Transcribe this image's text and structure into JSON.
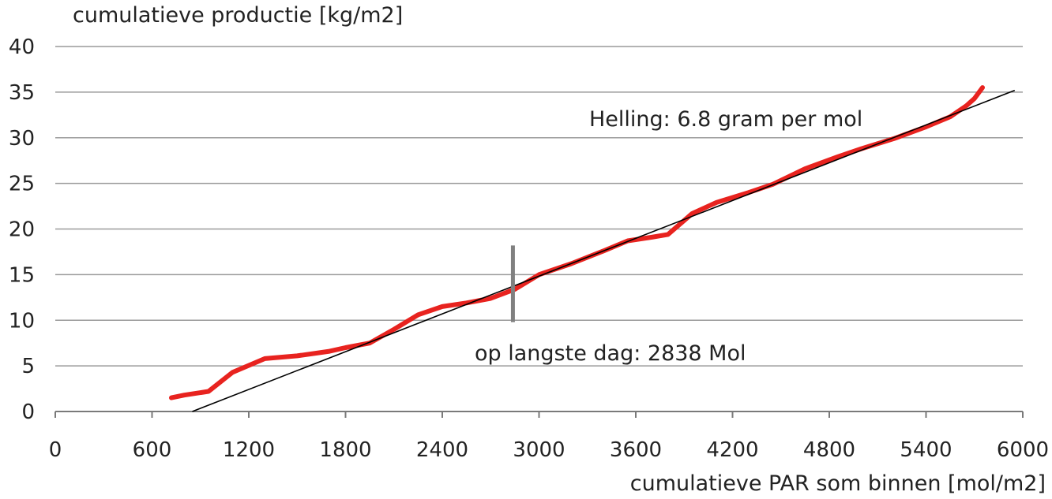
{
  "chart_data": {
    "type": "line",
    "ylabel": "cumulatieve productie [kg/m2]",
    "xlabel": "cumulatieve PAR som binnen [mol/m2]",
    "xlim": [
      0,
      6000
    ],
    "ylim": [
      0,
      40
    ],
    "xticks": [
      0,
      600,
      1200,
      1800,
      2400,
      3000,
      3600,
      4200,
      4800,
      5400,
      6000
    ],
    "yticks": [
      0,
      5,
      10,
      15,
      20,
      25,
      30,
      35,
      40
    ],
    "grid": "horizontal",
    "colors": {
      "measured": "#e8231f",
      "trend": "#000000",
      "marker": "#808080",
      "grid": "#9a9a9a"
    },
    "series": [
      {
        "x": [
          720,
          800,
          950,
          1100,
          1300,
          1500,
          1700,
          1800,
          1950,
          2100,
          2250,
          2400,
          2550,
          2700,
          2850,
          3000,
          3200,
          3400,
          3550,
          3700,
          3800,
          3950,
          4100,
          4300,
          4450,
          4650,
          4850,
          5000,
          5200,
          5400,
          5550,
          5650,
          5700,
          5750
        ],
        "values": [
          1.5,
          1.8,
          2.2,
          4.3,
          5.8,
          6.1,
          6.6,
          7.0,
          7.5,
          9.0,
          10.6,
          11.5,
          11.9,
          12.4,
          13.4,
          15.0,
          16.2,
          17.6,
          18.7,
          19.1,
          19.4,
          21.7,
          22.9,
          24.0,
          24.9,
          26.6,
          27.9,
          28.8,
          29.9,
          31.2,
          32.3,
          33.5,
          34.3,
          35.5
        ]
      },
      {
        "x": [
          850,
          5950
        ],
        "values": [
          0,
          35.2
        ]
      }
    ],
    "annotations": {
      "slope": "Helling:  6.8 gram per mol",
      "longest_day": "op langste dag: 2838 Mol",
      "marker_x": 2838,
      "marker_y": [
        9.8,
        18.2
      ]
    }
  }
}
